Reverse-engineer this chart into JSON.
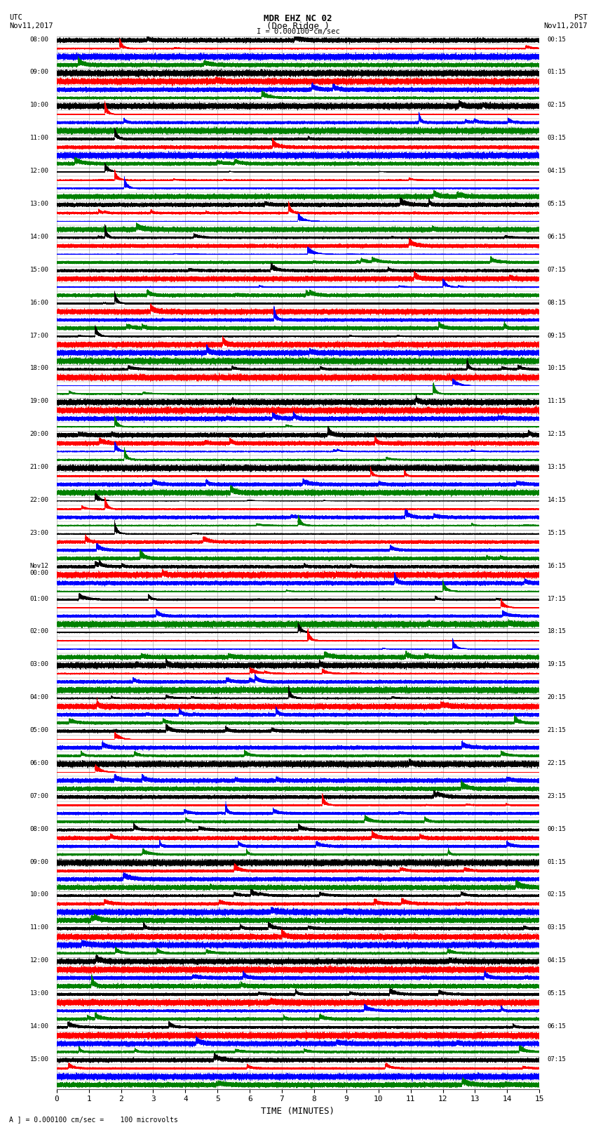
{
  "title_line1": "MDR EHZ NC 02",
  "title_line2": "(Doe Ridge )",
  "scale_text": "I = 0.000100 cm/sec",
  "bottom_text": "A ] = 0.000100 cm/sec =    100 microvolts",
  "utc_header": "UTC\nNov11,2017",
  "pst_header": "PST\nNov11,2017",
  "xlabel": "TIME (MINUTES)",
  "bg_color": "#ffffff",
  "trace_colors": [
    "black",
    "red",
    "blue",
    "green"
  ],
  "grid_color": "#999999",
  "time_minutes": 15,
  "n_row_groups": 32,
  "traces_per_group": 4,
  "utc_labels": [
    "08:00",
    "09:00",
    "10:00",
    "11:00",
    "12:00",
    "13:00",
    "14:00",
    "15:00",
    "16:00",
    "17:00",
    "18:00",
    "19:00",
    "20:00",
    "21:00",
    "22:00",
    "23:00",
    "Nov12\n00:00",
    "01:00",
    "02:00",
    "03:00",
    "04:00",
    "05:00",
    "06:00",
    "07:00",
    "08:00",
    "09:00",
    "10:00",
    "11:00",
    "12:00",
    "13:00",
    "14:00",
    "15:00"
  ],
  "pst_labels": [
    "00:15",
    "01:15",
    "02:15",
    "03:15",
    "04:15",
    "05:15",
    "06:15",
    "07:15",
    "08:15",
    "09:15",
    "10:15",
    "11:15",
    "12:15",
    "13:15",
    "14:15",
    "15:15",
    "16:15",
    "17:15",
    "18:15",
    "19:15",
    "20:15",
    "21:15",
    "22:15",
    "23:15",
    "00:15",
    "01:15",
    "02:15",
    "03:15",
    "04:15",
    "05:15",
    "06:15",
    "07:15"
  ],
  "noise_base": 0.06,
  "amp_max": 0.38,
  "sample_rate": 100,
  "lw": 0.28
}
